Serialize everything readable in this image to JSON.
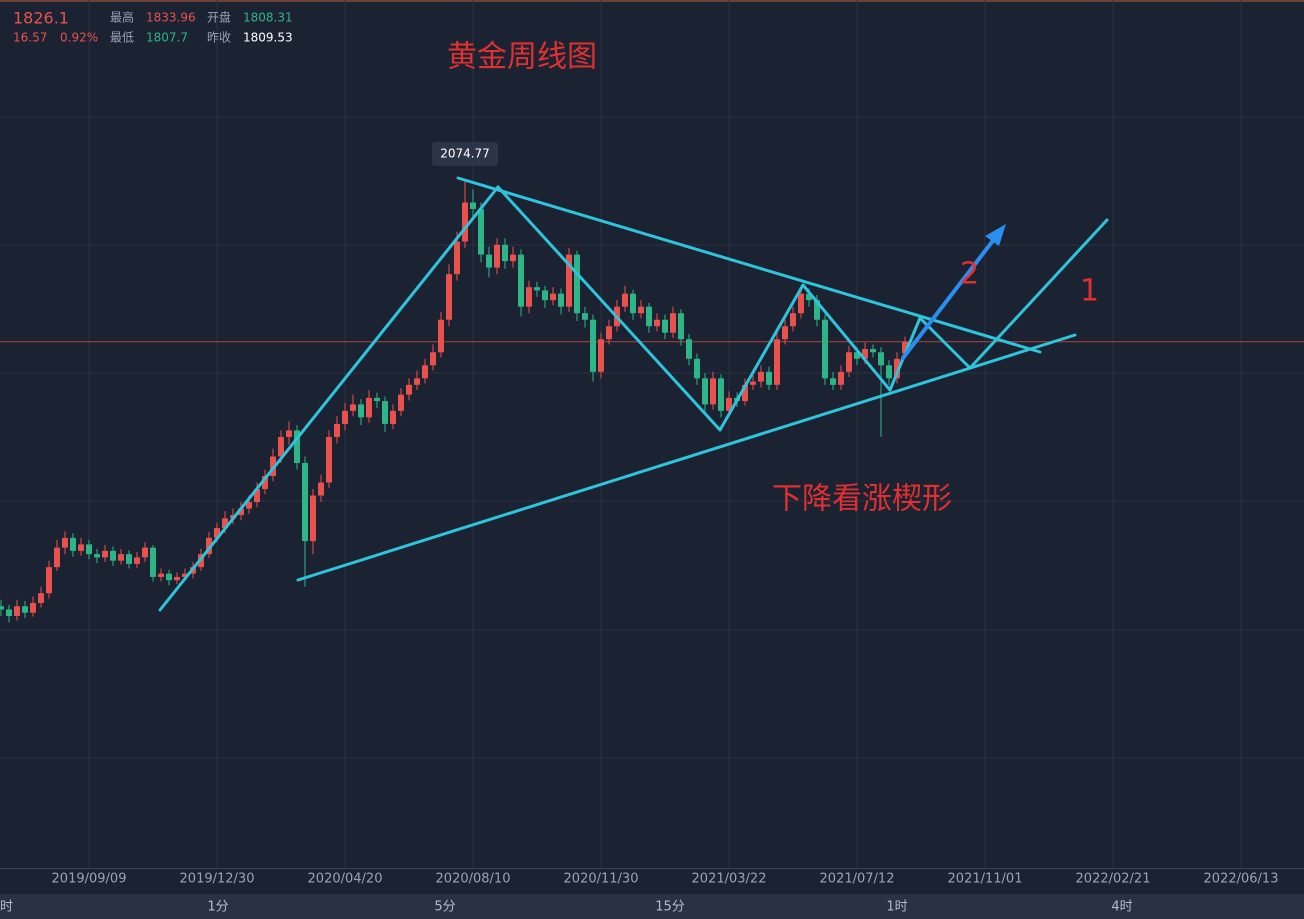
{
  "header": {
    "price": 1826.1,
    "change": 16.57,
    "change_pct": "0.92%",
    "high_label": "最高",
    "high": 1833.96,
    "open_label": "开盘",
    "open": 1808.31,
    "low_label": "最低",
    "low": 1807.7,
    "prev_label": "昨收",
    "prev_close": 1809.53
  },
  "periods": [
    "时",
    "1分",
    "5分",
    "15分",
    "1时",
    "4时"
  ],
  "chart_data": {
    "type": "candlestick",
    "title": "黄金周线图",
    "annotations": [
      "下降看涨楔形",
      "2",
      "1"
    ],
    "up_color": "#e9514d",
    "down_color": "#2db588",
    "xlim": [
      -0.125,
      162.875
    ],
    "ylim": [
      1018,
      2351
    ],
    "xticks": [
      {
        "value": 11,
        "label": "2019/09/09"
      },
      {
        "value": 27,
        "label": "2019/12/30"
      },
      {
        "value": 43,
        "label": "2020/04/20"
      },
      {
        "value": 59,
        "label": "2020/08/10"
      },
      {
        "value": 75,
        "label": "2020/11/30"
      },
      {
        "value": 91,
        "label": "2021/03/22"
      },
      {
        "value": 107,
        "label": "2021/07/12"
      },
      {
        "value": 123,
        "label": "2021/11/01"
      },
      {
        "value": 139,
        "label": "2022/02/21"
      },
      {
        "value": 155,
        "label": "2022/06/13"
      }
    ],
    "candles": [
      [
        1420,
        1430,
        1405,
        1415
      ],
      [
        1415,
        1422,
        1395,
        1405
      ],
      [
        1405,
        1430,
        1398,
        1420
      ],
      [
        1420,
        1428,
        1402,
        1410
      ],
      [
        1410,
        1435,
        1404,
        1425
      ],
      [
        1425,
        1450,
        1418,
        1440
      ],
      [
        1440,
        1490,
        1432,
        1480
      ],
      [
        1480,
        1522,
        1474,
        1510
      ],
      [
        1510,
        1535,
        1500,
        1525
      ],
      [
        1525,
        1532,
        1496,
        1505
      ],
      [
        1505,
        1525,
        1498,
        1515
      ],
      [
        1515,
        1522,
        1492,
        1500
      ],
      [
        1500,
        1508,
        1486,
        1495
      ],
      [
        1495,
        1514,
        1488,
        1505
      ],
      [
        1505,
        1512,
        1482,
        1490
      ],
      [
        1490,
        1508,
        1484,
        1500
      ],
      [
        1500,
        1506,
        1478,
        1485
      ],
      [
        1485,
        1503,
        1479,
        1495
      ],
      [
        1495,
        1518,
        1488,
        1510
      ],
      [
        1510,
        1514,
        1458,
        1465
      ],
      [
        1465,
        1478,
        1458,
        1470
      ],
      [
        1470,
        1476,
        1452,
        1460
      ],
      [
        1460,
        1472,
        1454,
        1465
      ],
      [
        1465,
        1478,
        1459,
        1470
      ],
      [
        1470,
        1488,
        1463,
        1480
      ],
      [
        1480,
        1508,
        1474,
        1500
      ],
      [
        1500,
        1534,
        1494,
        1525
      ],
      [
        1525,
        1548,
        1518,
        1540
      ],
      [
        1540,
        1566,
        1532,
        1555
      ],
      [
        1555,
        1570,
        1546,
        1560
      ],
      [
        1560,
        1580,
        1552,
        1570
      ],
      [
        1570,
        1590,
        1562,
        1580
      ],
      [
        1580,
        1610,
        1572,
        1600
      ],
      [
        1600,
        1630,
        1592,
        1620
      ],
      [
        1620,
        1662,
        1612,
        1650
      ],
      [
        1650,
        1690,
        1640,
        1680
      ],
      [
        1680,
        1704,
        1668,
        1690
      ],
      [
        1690,
        1698,
        1630,
        1640
      ],
      [
        1640,
        1650,
        1450,
        1520
      ],
      [
        1520,
        1600,
        1500,
        1590
      ],
      [
        1590,
        1622,
        1580,
        1610
      ],
      [
        1610,
        1690,
        1602,
        1680
      ],
      [
        1680,
        1712,
        1670,
        1700
      ],
      [
        1700,
        1732,
        1690,
        1720
      ],
      [
        1720,
        1745,
        1712,
        1730
      ],
      [
        1730,
        1738,
        1698,
        1710
      ],
      [
        1710,
        1752,
        1702,
        1740
      ],
      [
        1740,
        1748,
        1724,
        1735
      ],
      [
        1735,
        1742,
        1688,
        1700
      ],
      [
        1700,
        1730,
        1692,
        1720
      ],
      [
        1720,
        1755,
        1712,
        1745
      ],
      [
        1745,
        1770,
        1736,
        1760
      ],
      [
        1760,
        1782,
        1752,
        1770
      ],
      [
        1770,
        1800,
        1762,
        1790
      ],
      [
        1790,
        1822,
        1782,
        1810
      ],
      [
        1810,
        1872,
        1802,
        1860
      ],
      [
        1860,
        1945,
        1850,
        1930
      ],
      [
        1930,
        1995,
        1920,
        1980
      ],
      [
        1980,
        2074.77,
        1970,
        2040
      ],
      [
        2040,
        2060,
        2018,
        2030
      ],
      [
        2030,
        2040,
        1948,
        1960
      ],
      [
        1960,
        1972,
        1925,
        1940
      ],
      [
        1940,
        1985,
        1930,
        1975
      ],
      [
        1975,
        1985,
        1938,
        1950
      ],
      [
        1950,
        1972,
        1940,
        1960
      ],
      [
        1960,
        1968,
        1865,
        1880
      ],
      [
        1880,
        1920,
        1870,
        1910
      ],
      [
        1910,
        1918,
        1895,
        1905
      ],
      [
        1905,
        1912,
        1878,
        1890
      ],
      [
        1890,
        1910,
        1882,
        1900
      ],
      [
        1900,
        1908,
        1868,
        1880
      ],
      [
        1880,
        1970,
        1872,
        1960
      ],
      [
        1960,
        1966,
        1858,
        1870
      ],
      [
        1870,
        1880,
        1848,
        1860
      ],
      [
        1860,
        1868,
        1765,
        1780
      ],
      [
        1780,
        1840,
        1770,
        1830
      ],
      [
        1830,
        1860,
        1822,
        1850
      ],
      [
        1850,
        1890,
        1842,
        1880
      ],
      [
        1880,
        1912,
        1872,
        1900
      ],
      [
        1900,
        1906,
        1860,
        1870
      ],
      [
        1870,
        1890,
        1862,
        1880
      ],
      [
        1880,
        1886,
        1840,
        1850
      ],
      [
        1850,
        1870,
        1842,
        1860
      ],
      [
        1860,
        1868,
        1830,
        1840
      ],
      [
        1840,
        1880,
        1832,
        1870
      ],
      [
        1870,
        1876,
        1820,
        1830
      ],
      [
        1830,
        1838,
        1790,
        1800
      ],
      [
        1800,
        1808,
        1760,
        1770
      ],
      [
        1770,
        1778,
        1718,
        1730
      ],
      [
        1730,
        1780,
        1722,
        1770
      ],
      [
        1770,
        1776,
        1710,
        1720
      ],
      [
        1720,
        1750,
        1712,
        1740
      ],
      [
        1740,
        1748,
        1726,
        1735
      ],
      [
        1735,
        1770,
        1728,
        1760
      ],
      [
        1760,
        1775,
        1752,
        1765
      ],
      [
        1765,
        1790,
        1756,
        1780
      ],
      [
        1780,
        1788,
        1752,
        1760
      ],
      [
        1760,
        1840,
        1752,
        1830
      ],
      [
        1830,
        1860,
        1822,
        1850
      ],
      [
        1850,
        1880,
        1842,
        1870
      ],
      [
        1870,
        1912,
        1862,
        1900
      ],
      [
        1900,
        1908,
        1880,
        1890
      ],
      [
        1890,
        1898,
        1850,
        1860
      ],
      [
        1860,
        1868,
        1760,
        1770
      ],
      [
        1770,
        1780,
        1752,
        1760
      ],
      [
        1760,
        1790,
        1752,
        1780
      ],
      [
        1780,
        1820,
        1772,
        1810
      ],
      [
        1810,
        1818,
        1790,
        1800
      ],
      [
        1800,
        1825,
        1792,
        1815
      ],
      [
        1815,
        1822,
        1802,
        1810
      ],
      [
        1810,
        1818,
        1680,
        1790
      ],
      [
        1790,
        1798,
        1760,
        1770
      ],
      [
        1770,
        1810,
        1762,
        1800
      ],
      [
        1808.31,
        1833.96,
        1807.7,
        1826.1
      ]
    ]
  }
}
